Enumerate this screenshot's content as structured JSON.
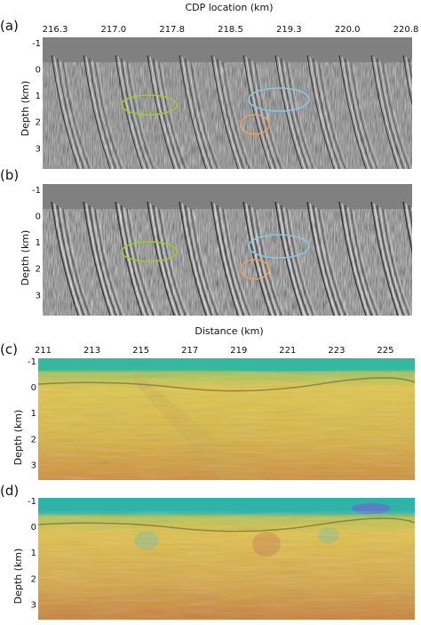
{
  "panels": {
    "a": {
      "label": "(a)"
    },
    "b": {
      "label": "(b)"
    },
    "c": {
      "label": "(c)"
    },
    "d": {
      "label": "(d)"
    }
  },
  "top_axis": {
    "title": "CDP location (km)",
    "ticks": [
      "216.3",
      "217.0",
      "217.8",
      "218.5",
      "219.3",
      "220.0",
      "220.8"
    ]
  },
  "bottom_axis": {
    "title": "Distance (km)",
    "ticks": [
      "211",
      "213",
      "215",
      "217",
      "219",
      "221",
      "223",
      "225"
    ]
  },
  "depth_axis": {
    "label": "Depth (km)",
    "ticks": [
      "-1",
      "0",
      "1",
      "2",
      "3"
    ]
  },
  "ellipse_colors": {
    "green": "#9acd32",
    "blue": "#87c8e8",
    "orange": "#e8a060"
  },
  "colors": {
    "seismic_bg": "#808080",
    "water": "#2fb39a",
    "sediment": "#d8c04a",
    "deep": "#c98a3a"
  },
  "chart_data": [
    {
      "type": "heatmap",
      "panel": "a",
      "xlabel": "CDP location (km)",
      "ylabel": "Depth (km)",
      "xticks": [
        216.3,
        217.0,
        217.8,
        218.5,
        219.3,
        220.0,
        220.8
      ],
      "yticks": [
        -1,
        0,
        1,
        2,
        3
      ],
      "xlim": [
        216.2,
        220.9
      ],
      "ylim": [
        3.8,
        -1.2
      ],
      "annotations": [
        "green ellipse",
        "blue ellipse",
        "orange ellipse"
      ]
    },
    {
      "type": "heatmap",
      "panel": "b",
      "ylabel": "Depth (km)",
      "yticks": [
        -1,
        0,
        1,
        2,
        3
      ],
      "xlim": [
        216.2,
        220.9
      ],
      "ylim": [
        3.8,
        -1.2
      ],
      "annotations": [
        "green ellipse",
        "blue ellipse",
        "orange ellipse"
      ]
    },
    {
      "type": "heatmap",
      "panel": "c",
      "xlabel": "Distance (km)",
      "ylabel": "Depth (km)",
      "xticks": [
        211,
        213,
        215,
        217,
        219,
        221,
        223,
        225
      ],
      "yticks": [
        -1,
        0,
        1,
        2,
        3
      ],
      "xlim": [
        210.8,
        226.2
      ],
      "ylim": [
        3.6,
        -1.1
      ]
    },
    {
      "type": "heatmap",
      "panel": "d",
      "ylabel": "Depth (km)",
      "yticks": [
        -1,
        0,
        1,
        2,
        3
      ],
      "xlim": [
        210.8,
        226.2
      ],
      "ylim": [
        3.6,
        -1.1
      ]
    }
  ]
}
